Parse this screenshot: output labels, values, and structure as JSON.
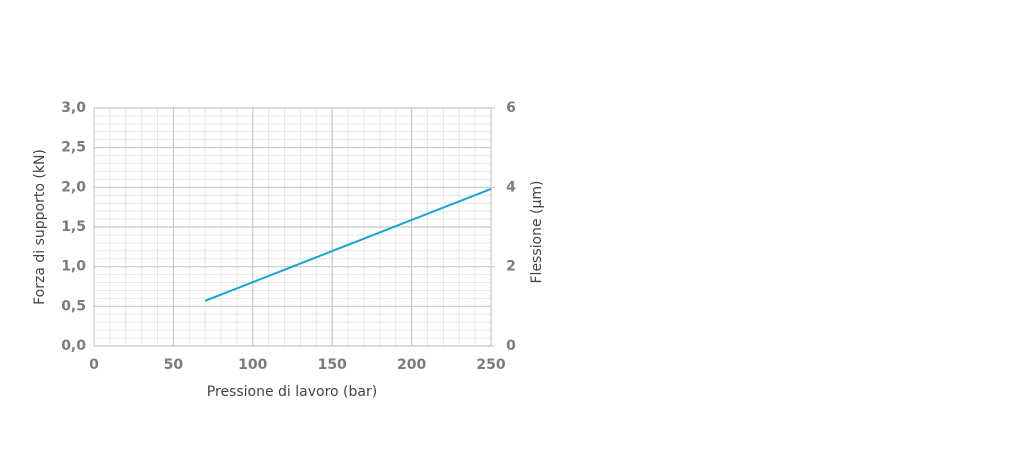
{
  "chart_data": {
    "type": "line",
    "x_label": "Pressione di lavoro (bar)",
    "y_label": "Forza di supporto (kN)",
    "y2_label": "Flessione (µm)",
    "x": [
      70,
      250
    ],
    "series": [
      {
        "color": "#1aa3d1",
        "values": [
          0.57,
          1.98
        ]
      }
    ],
    "xlim": [
      0,
      250
    ],
    "xticks": [
      0,
      50,
      100,
      150,
      200,
      250
    ],
    "ylim": [
      0,
      3
    ],
    "yticks": [
      {
        "value": 0,
        "label": "0,0"
      },
      {
        "value": 0.5,
        "label": "0,5"
      },
      {
        "value": 1,
        "label": "1,0"
      },
      {
        "value": 1.5,
        "label": "1,5"
      },
      {
        "value": 2,
        "label": "2,0"
      },
      {
        "value": 2.5,
        "label": "2,5"
      },
      {
        "value": 3,
        "label": "3,0"
      }
    ],
    "y2lim": [
      0,
      6
    ],
    "y2ticks": [
      0,
      2,
      4,
      6
    ],
    "grid": true
  }
}
